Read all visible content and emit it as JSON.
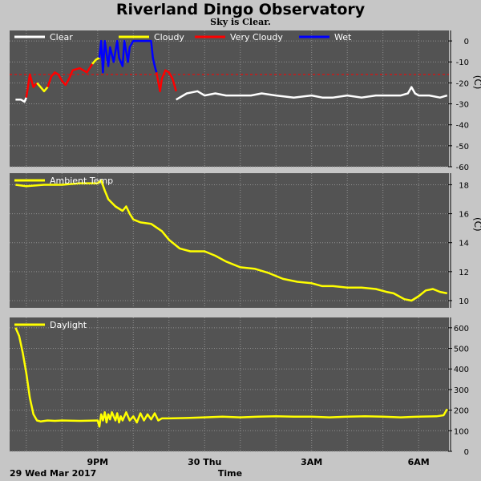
{
  "header": {
    "title": "Riverland Dingo Observatory",
    "subtitle": "Sky is Clear."
  },
  "footer": {
    "date_label": "29 Wed Mar 2017",
    "xlabel": "Time"
  },
  "colors": {
    "background": "#c6c6c6",
    "panel": "#535353",
    "grid": "#8f8f8f",
    "clear": "#ffffff",
    "cloudy": "#ffff00",
    "very_cloudy": "#ff0000",
    "wet": "#0000ff",
    "threshold": "#ff0000"
  },
  "chart_data": [
    {
      "type": "line",
      "id": "sky",
      "legend": [
        {
          "name": "Clear",
          "color": "#ffffff"
        },
        {
          "name": "Cloudy",
          "color": "#ffff00"
        },
        {
          "name": "Very Cloudy",
          "color": "#ff0000"
        },
        {
          "name": "Wet",
          "color": "#0000ff"
        }
      ],
      "unit": "(C)",
      "ylim": [
        -60,
        5
      ],
      "yticks": [
        0,
        -10,
        -20,
        -30,
        -40,
        -50,
        -60
      ],
      "xlim_hours": [
        18.6,
        30.85
      ],
      "x_ticks": [
        {
          "hour": 21,
          "label": "9PM"
        },
        {
          "hour": 24,
          "label": "30 Thu"
        },
        {
          "hour": 27,
          "label": "3AM"
        },
        {
          "hour": 30,
          "label": "6AM"
        }
      ],
      "x_grid_hours": [
        19,
        20,
        21,
        22,
        23,
        24,
        25,
        26,
        27,
        28,
        29,
        30
      ],
      "threshold": -16,
      "series": [
        {
          "class": "Clear",
          "color": "#ffffff",
          "x": [
            18.7,
            18.85,
            18.95,
            19.0
          ],
          "y": [
            -28,
            -28,
            -29,
            -27
          ]
        },
        {
          "class": "Very Cloudy",
          "color": "#ff0000",
          "x": [
            19.0,
            19.1,
            19.2,
            19.3
          ],
          "y": [
            -27,
            -16,
            -22,
            -20
          ]
        },
        {
          "class": "Cloudy",
          "color": "#ffff00",
          "x": [
            19.3,
            19.4,
            19.5,
            19.6
          ],
          "y": [
            -20,
            -22,
            -24,
            -22
          ]
        },
        {
          "class": "Very Cloudy",
          "color": "#ff0000",
          "x": [
            19.6,
            19.7,
            19.8,
            19.9,
            20.0,
            20.1,
            20.2,
            20.3,
            20.5,
            20.7,
            20.85
          ],
          "y": [
            -22,
            -17,
            -15,
            -16,
            -19,
            -21,
            -18,
            -14,
            -13,
            -15,
            -11
          ]
        },
        {
          "class": "Cloudy",
          "color": "#ffff00",
          "x": [
            20.85,
            20.95,
            21.05
          ],
          "y": [
            -11,
            -9,
            -8
          ]
        },
        {
          "class": "Wet",
          "color": "#0000ff",
          "x": [
            21.05,
            21.1,
            21.15,
            21.2,
            21.3,
            21.35,
            21.45,
            21.55,
            21.6,
            21.7,
            21.75,
            21.85,
            21.9,
            22.0,
            22.1,
            22.2,
            22.3,
            22.4,
            22.5,
            22.55,
            22.6,
            22.65
          ],
          "y": [
            -8,
            0,
            -15,
            0,
            -12,
            -3,
            -10,
            0,
            -8,
            -12,
            0,
            -10,
            -3,
            0,
            0,
            0,
            0,
            0,
            0,
            -8,
            -12,
            -15
          ]
        },
        {
          "class": "Very Cloudy",
          "color": "#ff0000",
          "x": [
            22.65,
            22.75,
            22.8,
            22.9,
            23.0,
            23.1,
            23.2
          ],
          "y": [
            -15,
            -24,
            -18,
            -14,
            -15,
            -18,
            -24
          ]
        },
        {
          "class": "Clear",
          "color": "#ffffff",
          "x": [
            23.2,
            23.3,
            23.5,
            23.8,
            24.0,
            24.3,
            24.6,
            25.0,
            25.3,
            25.6,
            26.0,
            26.5,
            27.0,
            27.3,
            27.6,
            28.0,
            28.4,
            28.8,
            29.2,
            29.5,
            29.7,
            29.8,
            29.9,
            30.0,
            30.3,
            30.6,
            30.8
          ],
          "y": [
            -28,
            -27,
            -25,
            -24,
            -26,
            -25,
            -26,
            -26,
            -26,
            -25,
            -26,
            -27,
            -26,
            -27,
            -27,
            -26,
            -27,
            -26,
            -26,
            -26,
            -25,
            -22,
            -25,
            -26,
            -26,
            -27,
            -26
          ]
        }
      ]
    },
    {
      "type": "line",
      "id": "ambient",
      "legend": [
        {
          "name": "Ambient Temp",
          "color": "#ffff00"
        }
      ],
      "unit": "(C)",
      "ylim": [
        9.5,
        18.8
      ],
      "yticks": [
        10,
        12,
        14,
        16,
        18
      ],
      "xlim_hours": [
        18.6,
        30.85
      ],
      "series": [
        {
          "name": "Ambient Temp",
          "color": "#ffff00",
          "x": [
            18.7,
            19.0,
            19.5,
            20.0,
            20.5,
            21.0,
            21.1,
            21.2,
            21.3,
            21.5,
            21.7,
            21.8,
            21.9,
            22.0,
            22.2,
            22.5,
            22.8,
            23.0,
            23.3,
            23.6,
            23.8,
            24.0,
            24.3,
            24.6,
            25.0,
            25.4,
            25.8,
            26.2,
            26.6,
            27.0,
            27.3,
            27.6,
            28.0,
            28.4,
            28.8,
            29.1,
            29.3,
            29.6,
            29.8,
            30.0,
            30.2,
            30.4,
            30.6,
            30.8
          ],
          "y": [
            18.0,
            17.9,
            18.0,
            18.0,
            18.1,
            18.1,
            18.3,
            17.6,
            17.0,
            16.5,
            16.2,
            16.5,
            16.0,
            15.6,
            15.4,
            15.3,
            14.8,
            14.2,
            13.6,
            13.4,
            13.4,
            13.4,
            13.1,
            12.7,
            12.3,
            12.2,
            11.9,
            11.5,
            11.3,
            11.2,
            11.0,
            11.0,
            10.9,
            10.9,
            10.8,
            10.6,
            10.5,
            10.1,
            10.0,
            10.3,
            10.7,
            10.8,
            10.6,
            10.5
          ]
        }
      ]
    },
    {
      "type": "line",
      "id": "daylight",
      "legend": [
        {
          "name": "Daylight",
          "color": "#ffff00"
        }
      ],
      "unit": "",
      "ylim": [
        0,
        650
      ],
      "yticks": [
        0,
        100,
        200,
        300,
        400,
        500,
        600
      ],
      "xlim_hours": [
        18.6,
        30.85
      ],
      "series": [
        {
          "name": "Daylight",
          "color": "#ffff00",
          "x": [
            18.7,
            18.8,
            18.9,
            19.0,
            19.1,
            19.2,
            19.3,
            19.4,
            19.6,
            19.8,
            20.0,
            20.5,
            21.0,
            21.05,
            21.1,
            21.15,
            21.2,
            21.25,
            21.3,
            21.35,
            21.4,
            21.5,
            21.55,
            21.6,
            21.65,
            21.7,
            21.8,
            21.9,
            22.0,
            22.1,
            22.2,
            22.3,
            22.4,
            22.5,
            22.6,
            22.7,
            22.8,
            23.0,
            23.5,
            24.0,
            24.5,
            25.0,
            25.5,
            26.0,
            26.5,
            27.0,
            27.5,
            28.0,
            28.5,
            29.0,
            29.5,
            30.0,
            30.5,
            30.7,
            30.8
          ],
          "y": [
            600,
            560,
            480,
            380,
            260,
            180,
            150,
            145,
            150,
            148,
            150,
            148,
            150,
            120,
            180,
            150,
            190,
            140,
            180,
            155,
            190,
            150,
            185,
            140,
            170,
            150,
            190,
            150,
            170,
            140,
            185,
            150,
            180,
            155,
            185,
            150,
            160,
            160,
            162,
            165,
            168,
            165,
            168,
            170,
            168,
            168,
            165,
            168,
            170,
            168,
            165,
            168,
            170,
            175,
            205
          ]
        }
      ]
    }
  ]
}
